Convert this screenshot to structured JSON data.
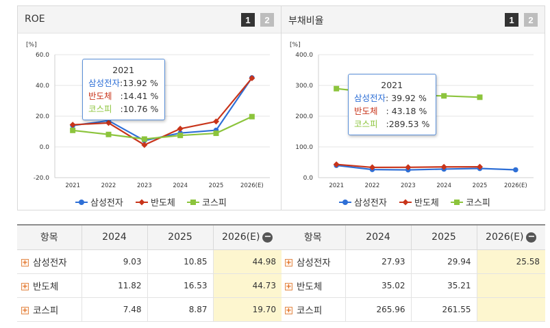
{
  "left_panel": {
    "title": "ROE",
    "pages": [
      "1",
      "2"
    ],
    "tooltip": {
      "year": "2021",
      "rows": [
        {
          "name": "삼성전자",
          "value": ":13.92 %"
        },
        {
          "name": "반도체",
          "value": ":14.41 %"
        },
        {
          "name": "코스피",
          "value": ":10.76 %"
        }
      ]
    }
  },
  "right_panel": {
    "title": "부채비율",
    "pages": [
      "1",
      "2"
    ],
    "tooltip": {
      "year": "2021",
      "rows": [
        {
          "name": "삼성전자",
          "value": ":  39.92 %"
        },
        {
          "name": "반도체",
          "value": ":  43.18 %"
        },
        {
          "name": "코스피",
          "value": ":289.53 %"
        }
      ]
    }
  },
  "colors": {
    "samsung": "#2e6fd6",
    "semi": "#c8341a",
    "kospi": "#8cc43c"
  },
  "chart_data": [
    {
      "type": "line",
      "title": "ROE",
      "unit": "[%]",
      "categories": [
        "2021",
        "2022",
        "2023",
        "2024",
        "2025",
        "2026(E)"
      ],
      "ylim": [
        -20,
        60
      ],
      "yticks": [
        "60.0",
        "40.0",
        "20.0",
        "0.0",
        "-20.0"
      ],
      "series": [
        {
          "name": "삼성전자",
          "values": [
            13.92,
            17.07,
            4.15,
            9.03,
            10.85,
            44.98
          ]
        },
        {
          "name": "반도체",
          "values": [
            14.41,
            15.6,
            1.3,
            11.82,
            16.53,
            44.73
          ]
        },
        {
          "name": "코스피",
          "values": [
            10.76,
            8.1,
            5.1,
            7.48,
            8.87,
            19.7
          ]
        }
      ]
    },
    {
      "type": "line",
      "title": "부채비율",
      "unit": "[%]",
      "categories": [
        "2021",
        "2022",
        "2023",
        "2024",
        "2025",
        "2026(E)"
      ],
      "ylim": [
        0,
        400
      ],
      "yticks": [
        "400.0",
        "300.0",
        "200.0",
        "100.0",
        "0.0"
      ],
      "series": [
        {
          "name": "삼성전자",
          "values": [
            39.92,
            26.4,
            25.36,
            27.93,
            29.94,
            25.58
          ]
        },
        {
          "name": "반도체",
          "values": [
            43.18,
            33.5,
            33.8,
            35.02,
            35.21,
            null
          ]
        },
        {
          "name": "코스피",
          "values": [
            289.53,
            277.0,
            268.0,
            265.96,
            261.55,
            null
          ]
        }
      ]
    }
  ],
  "left_table": {
    "headers": [
      "항목",
      "2024",
      "2025",
      "2026(E)"
    ],
    "rows": [
      {
        "name": "삼성전자",
        "cells": [
          "9.03",
          "10.85",
          "44.98"
        ]
      },
      {
        "name": "반도체",
        "cells": [
          "11.82",
          "16.53",
          "44.73"
        ]
      },
      {
        "name": "코스피",
        "cells": [
          "7.48",
          "8.87",
          "19.70"
        ]
      }
    ]
  },
  "right_table": {
    "headers": [
      "항목",
      "2024",
      "2025",
      "2026(E)"
    ],
    "rows": [
      {
        "name": "삼성전자",
        "cells": [
          "27.93",
          "29.94",
          "25.58"
        ]
      },
      {
        "name": "반도체",
        "cells": [
          "35.02",
          "35.21",
          ""
        ]
      },
      {
        "name": "코스피",
        "cells": [
          "265.96",
          "261.55",
          ""
        ]
      }
    ]
  }
}
